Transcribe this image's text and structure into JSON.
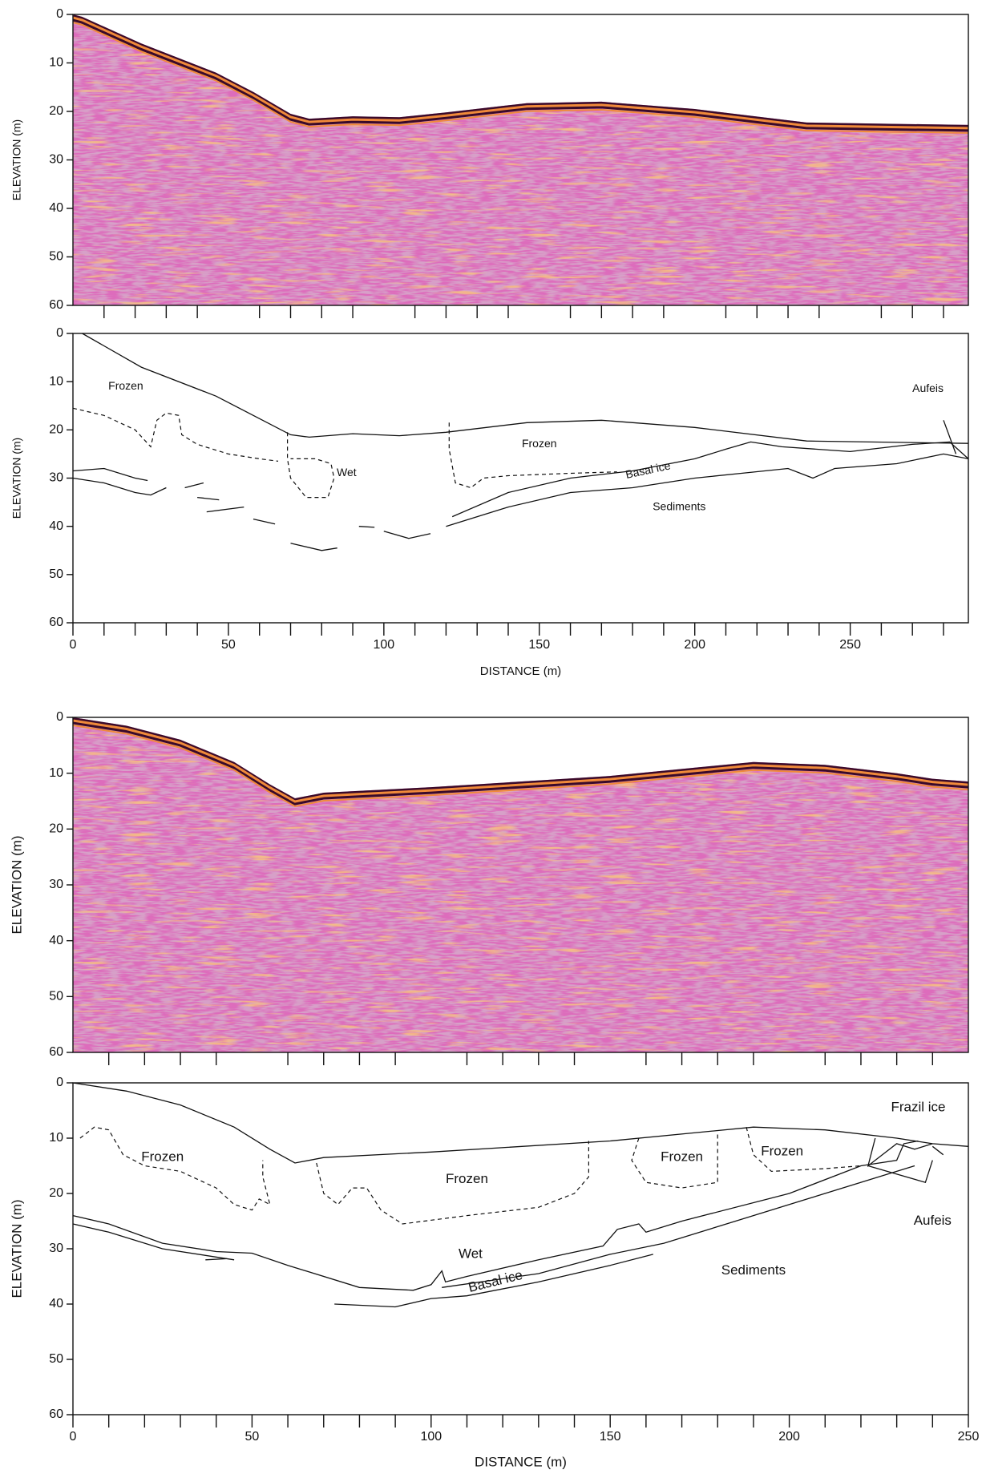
{
  "chart_data": [
    {
      "type": "radargram",
      "y_label": "ELEVATION (m)",
      "xlim": [
        0,
        288
      ],
      "ylim": [
        0,
        60
      ],
      "yticks": [
        0,
        10,
        20,
        30,
        40,
        50,
        60
      ],
      "xminorticks": [
        10,
        20,
        30,
        40,
        60,
        70,
        80,
        90,
        110,
        120,
        130,
        140,
        160,
        170,
        180,
        190,
        210,
        220,
        230,
        240,
        260,
        270,
        280
      ]
    },
    {
      "type": "interpretation",
      "y_label": "ELEVATION (m)",
      "x_label": "DISTANCE (m)",
      "xlim": [
        0,
        288
      ],
      "ylim": [
        0,
        60
      ],
      "yticks": [
        0,
        10,
        20,
        30,
        40,
        50,
        60
      ],
      "xticks": [
        0,
        50,
        100,
        150,
        200,
        250
      ],
      "xminorticks": [
        10,
        20,
        30,
        40,
        60,
        70,
        80,
        90,
        110,
        120,
        130,
        140,
        160,
        170,
        180,
        190,
        210,
        220,
        230,
        240,
        260,
        270,
        280
      ],
      "annotations": [
        "Frozen",
        "Wet",
        "Frozen",
        "Basal ice",
        "Sediments",
        "Aufeis"
      ]
    },
    {
      "type": "radargram",
      "y_label": "ELEVATION (m)",
      "xlim": [
        0,
        250
      ],
      "ylim": [
        0,
        60
      ],
      "yticks": [
        0,
        10,
        20,
        30,
        40,
        50,
        60
      ],
      "xminorticks": [
        10,
        20,
        30,
        40,
        60,
        70,
        80,
        90,
        110,
        120,
        130,
        140,
        160,
        170,
        180,
        190,
        210,
        220,
        230,
        240
      ]
    },
    {
      "type": "interpretation",
      "y_label": "ELEVATION (m)",
      "x_label": "DISTANCE (m)",
      "xlim": [
        0,
        250
      ],
      "ylim": [
        0,
        60
      ],
      "yticks": [
        0,
        10,
        20,
        30,
        40,
        50,
        60
      ],
      "xticks": [
        0,
        50,
        100,
        150,
        200,
        250
      ],
      "xminorticks": [
        10,
        20,
        30,
        40,
        60,
        70,
        80,
        90,
        110,
        120,
        130,
        140,
        160,
        170,
        180,
        190,
        210,
        220,
        230,
        240
      ],
      "annotations": [
        "Frozen",
        "Frozen",
        "Frozen",
        "Frozen",
        "Frazil ice",
        "Wet",
        "Basal ice",
        "Sediments",
        "Aufeis"
      ]
    }
  ]
}
